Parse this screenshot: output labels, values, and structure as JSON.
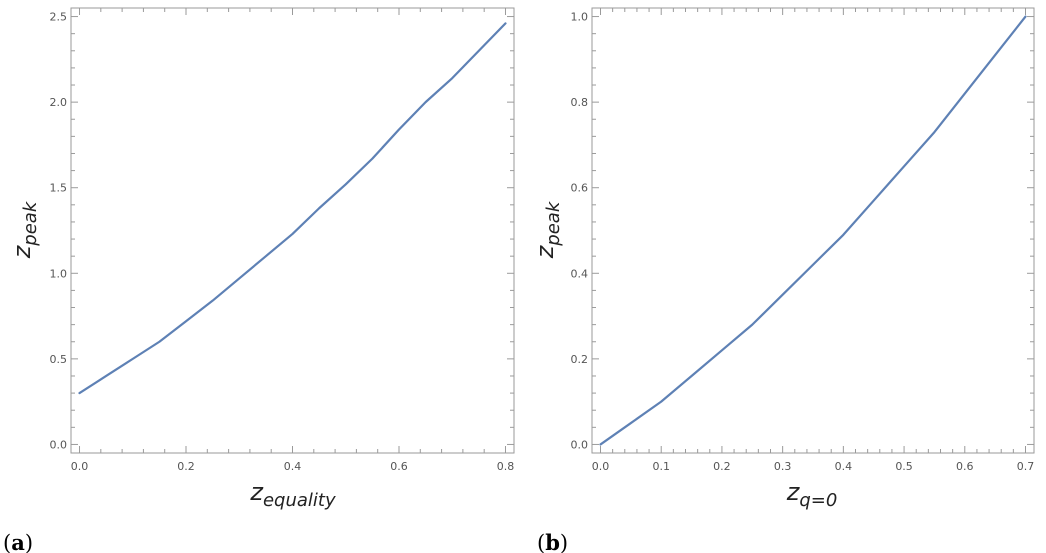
{
  "chart_data": [
    {
      "type": "line",
      "panel_label": "a",
      "xlabel_main": "z",
      "xlabel_sub": "equality",
      "ylabel_main": "z",
      "ylabel_sub": "peak",
      "xlim": [
        0.0,
        0.8
      ],
      "ylim": [
        0.0,
        2.5
      ],
      "xticks": [
        "0.0",
        "0.2",
        "0.4",
        "0.6",
        "0.8"
      ],
      "yticks": [
        "0.0",
        "0.5",
        "1.0",
        "1.5",
        "2.0",
        "2.5"
      ],
      "grid": false,
      "line_color": "#5e81b5",
      "series": [
        {
          "x": [
            0.0,
            0.05,
            0.1,
            0.15,
            0.2,
            0.25,
            0.3,
            0.35,
            0.4,
            0.45,
            0.5,
            0.55,
            0.6,
            0.65,
            0.7,
            0.75,
            0.8
          ],
          "values": [
            0.3,
            0.4,
            0.5,
            0.6,
            0.72,
            0.84,
            0.97,
            1.1,
            1.23,
            1.38,
            1.52,
            1.67,
            1.84,
            2.0,
            2.14,
            2.3,
            2.46
          ]
        }
      ]
    },
    {
      "type": "line",
      "panel_label": "b",
      "xlabel_main": "z",
      "xlabel_sub": "q=0",
      "ylabel_main": "z",
      "ylabel_sub": "peak",
      "xlim": [
        0.0,
        0.7
      ],
      "ylim": [
        0.0,
        1.0
      ],
      "xticks": [
        "0.0",
        "0.1",
        "0.2",
        "0.3",
        "0.4",
        "0.5",
        "0.6",
        "0.7"
      ],
      "yticks": [
        "0.0",
        "0.2",
        "0.4",
        "0.6",
        "0.8",
        "1.0"
      ],
      "grid": false,
      "line_color": "#5e81b5",
      "series": [
        {
          "x": [
            0.0,
            0.05,
            0.1,
            0.15,
            0.2,
            0.25,
            0.3,
            0.35,
            0.4,
            0.45,
            0.5,
            0.55,
            0.6,
            0.65,
            0.7
          ],
          "values": [
            0.0,
            0.05,
            0.1,
            0.16,
            0.22,
            0.28,
            0.35,
            0.42,
            0.49,
            0.57,
            0.65,
            0.73,
            0.82,
            0.91,
            1.0
          ]
        }
      ]
    }
  ]
}
